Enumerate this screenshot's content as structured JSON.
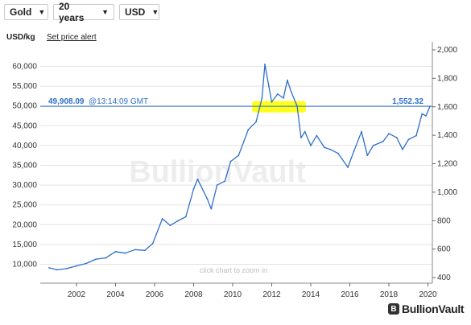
{
  "controls": {
    "metal": "Gold",
    "period": "20 years",
    "currency": "USD",
    "unit_label": "USD/kg",
    "alert_link": "Set price alert"
  },
  "chart_data": {
    "type": "line",
    "watermark": "BullionVault",
    "hint": "click chart to zoom in",
    "left_axis": {
      "ticks": [
        10000,
        15000,
        20000,
        25000,
        30000,
        35000,
        40000,
        45000,
        50000,
        55000,
        60000
      ],
      "labels": [
        "10,000",
        "15,000",
        "20,000",
        "25,000",
        "30,000",
        "35,000",
        "40,000",
        "45,000",
        "50,000",
        "55,000",
        "60,000"
      ]
    },
    "right_axis": {
      "ticks": [
        400,
        600,
        800,
        1000,
        1200,
        1400,
        1600,
        1800,
        2000
      ],
      "labels": [
        "400",
        "600",
        "800",
        "1,000",
        "1,200",
        "1,400",
        "1,600",
        "1,800",
        "2,000"
      ]
    },
    "x_axis": {
      "ticks": [
        2002,
        2004,
        2006,
        2008,
        2010,
        2012,
        2014,
        2016,
        2018,
        2020
      ],
      "labels": [
        "2002",
        "2004",
        "2006",
        "2008",
        "2010",
        "2012",
        "2014",
        "2016",
        "2018",
        "2020"
      ]
    },
    "current_price": {
      "value_kg": "49,908.09",
      "time": "@13:14:09 GMT",
      "value_oz": "1,552.32"
    },
    "colors": {
      "line": "#2f6fca",
      "highlight": "#ffff00",
      "grid": "#e3e3e3"
    },
    "series": [
      {
        "values": [
          [
            2000.6,
            9100
          ],
          [
            2001.0,
            8600
          ],
          [
            2001.5,
            8900
          ],
          [
            2002.0,
            9600
          ],
          [
            2002.5,
            10200
          ],
          [
            2003.0,
            11300
          ],
          [
            2003.5,
            11600
          ],
          [
            2004.0,
            13200
          ],
          [
            2004.5,
            12800
          ],
          [
            2005.0,
            13700
          ],
          [
            2005.5,
            13500
          ],
          [
            2005.9,
            15200
          ],
          [
            2006.4,
            21500
          ],
          [
            2006.8,
            19800
          ],
          [
            2007.2,
            21000
          ],
          [
            2007.6,
            22000
          ],
          [
            2008.0,
            29000
          ],
          [
            2008.2,
            31500
          ],
          [
            2008.7,
            26500
          ],
          [
            2008.9,
            24000
          ],
          [
            2009.2,
            30000
          ],
          [
            2009.6,
            31000
          ],
          [
            2009.9,
            36000
          ],
          [
            2010.3,
            37500
          ],
          [
            2010.8,
            44000
          ],
          [
            2011.2,
            46000
          ],
          [
            2011.5,
            52000
          ],
          [
            2011.65,
            60500
          ],
          [
            2011.85,
            55000
          ],
          [
            2012.0,
            51000
          ],
          [
            2012.3,
            53000
          ],
          [
            2012.6,
            52000
          ],
          [
            2012.8,
            56500
          ],
          [
            2013.0,
            53500
          ],
          [
            2013.3,
            50000
          ],
          [
            2013.5,
            42000
          ],
          [
            2013.7,
            43500
          ],
          [
            2014.0,
            40000
          ],
          [
            2014.3,
            42500
          ],
          [
            2014.7,
            39500
          ],
          [
            2015.0,
            39000
          ],
          [
            2015.4,
            38000
          ],
          [
            2015.9,
            34500
          ],
          [
            2016.2,
            38500
          ],
          [
            2016.6,
            43500
          ],
          [
            2016.9,
            37500
          ],
          [
            2017.2,
            40000
          ],
          [
            2017.7,
            41000
          ],
          [
            2018.0,
            43000
          ],
          [
            2018.4,
            42000
          ],
          [
            2018.7,
            39000
          ],
          [
            2019.0,
            41500
          ],
          [
            2019.4,
            42500
          ],
          [
            2019.7,
            48000
          ],
          [
            2019.9,
            47500
          ],
          [
            2020.1,
            49908
          ]
        ]
      }
    ]
  }
}
